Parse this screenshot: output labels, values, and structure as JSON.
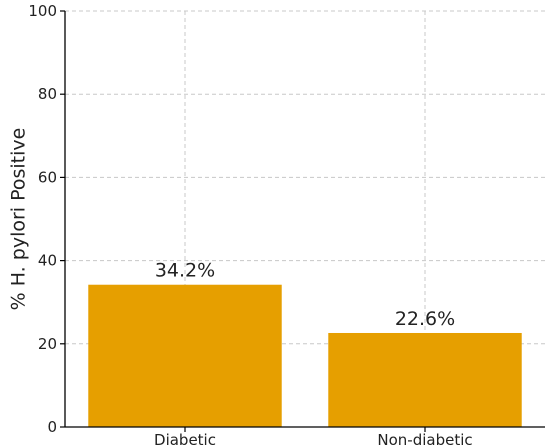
{
  "chart_data": {
    "type": "bar",
    "title": "",
    "xlabel": "",
    "ylabel": "% H. pylori Positive",
    "categories": [
      "Diabetic",
      "Non-diabetic"
    ],
    "values": [
      34.2,
      22.6
    ],
    "value_labels": [
      "34.2%",
      "22.6%"
    ],
    "ylim": [
      0,
      100
    ],
    "yticks": [
      0,
      20,
      40,
      60,
      80,
      100
    ],
    "grid": true,
    "grid_style": "dashed",
    "legend": "none",
    "bar_color": "#E69F00"
  }
}
